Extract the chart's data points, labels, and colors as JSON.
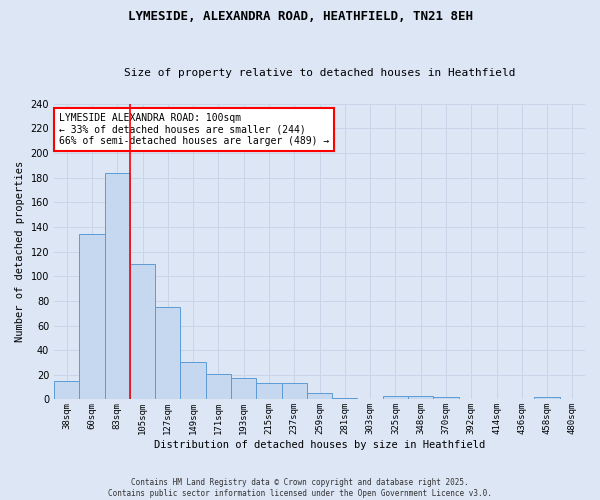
{
  "title1": "LYMESIDE, ALEXANDRA ROAD, HEATHFIELD, TN21 8EH",
  "title2": "Size of property relative to detached houses in Heathfield",
  "xlabel": "Distribution of detached houses by size in Heathfield",
  "ylabel": "Number of detached properties",
  "bar_labels": [
    "38sqm",
    "60sqm",
    "83sqm",
    "105sqm",
    "127sqm",
    "149sqm",
    "171sqm",
    "193sqm",
    "215sqm",
    "237sqm",
    "259sqm",
    "281sqm",
    "303sqm",
    "325sqm",
    "348sqm",
    "370sqm",
    "392sqm",
    "414sqm",
    "436sqm",
    "458sqm",
    "480sqm"
  ],
  "bar_values": [
    15,
    134,
    184,
    110,
    75,
    30,
    21,
    17,
    13,
    13,
    5,
    1,
    0,
    3,
    3,
    2,
    0,
    0,
    0,
    2,
    0
  ],
  "bar_color": "#c5d8f0",
  "bar_edge_color": "#5b9bd5",
  "grid_color": "#c8d4e8",
  "background_color": "#dce6f5",
  "red_line_index": 3,
  "annotation_text": "LYMESIDE ALEXANDRA ROAD: 100sqm\n← 33% of detached houses are smaller (244)\n66% of semi-detached houses are larger (489) →",
  "annotation_box_color": "white",
  "annotation_edge_color": "red",
  "ylim": [
    0,
    240
  ],
  "yticks": [
    0,
    20,
    40,
    60,
    80,
    100,
    120,
    140,
    160,
    180,
    200,
    220,
    240
  ],
  "footer1": "Contains HM Land Registry data © Crown copyright and database right 2025.",
  "footer2": "Contains public sector information licensed under the Open Government Licence v3.0."
}
